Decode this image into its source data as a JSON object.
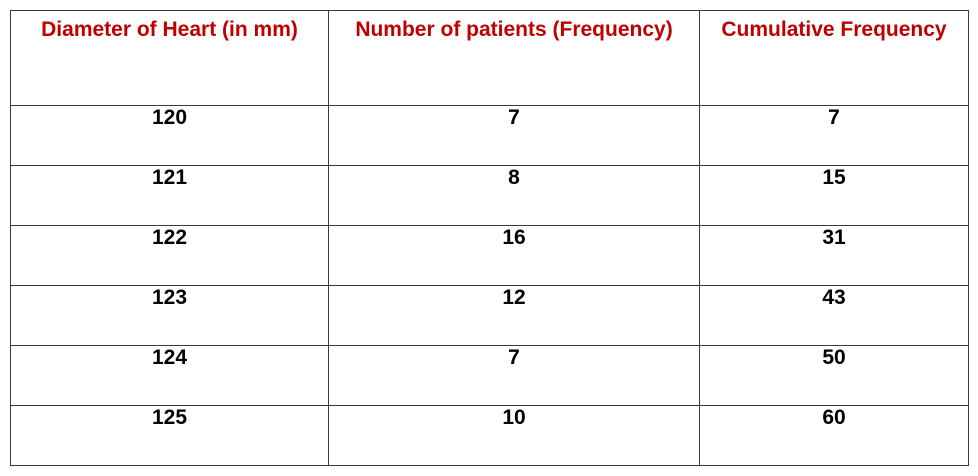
{
  "table": {
    "headers": [
      "Diameter of Heart  (in mm)",
      "Number of patients (Frequency)",
      "Cumulative Frequency"
    ],
    "rows": [
      [
        "120",
        "7",
        "7"
      ],
      [
        "121",
        "8",
        "15"
      ],
      [
        "122",
        "16",
        "31"
      ],
      [
        "123",
        "12",
        "43"
      ],
      [
        "124",
        "7",
        "50"
      ],
      [
        "125",
        "10",
        "60"
      ]
    ]
  },
  "colors": {
    "header_text": "#c00000",
    "body_text": "#000000",
    "border": "#3a3a3a"
  }
}
